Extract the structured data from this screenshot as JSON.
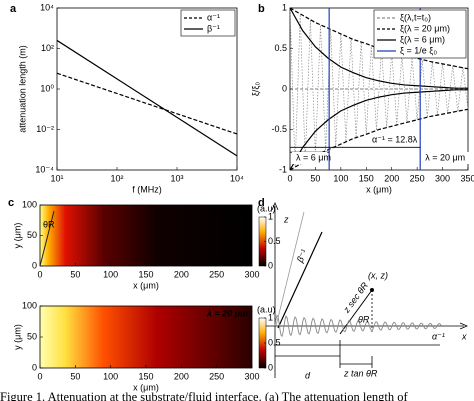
{
  "chart_data": [
    {
      "type": "line",
      "panel": "a",
      "xlabel": "f (MHz)",
      "ylabel": "attenuation length (m)",
      "log_x": true,
      "log_y": true,
      "x": [
        10,
        10000
      ],
      "xlim": [
        10,
        10000
      ],
      "ylim": [
        0.0001,
        10000
      ],
      "xticks": [
        {
          "value": 10,
          "label": "10¹"
        },
        {
          "value": 100,
          "label": "10²"
        },
        {
          "value": 1000,
          "label": "10³"
        },
        {
          "value": 10000,
          "label": "10⁴"
        }
      ],
      "yticks": [
        {
          "value": 0.0001,
          "label": "10⁻⁴"
        },
        {
          "value": 0.01,
          "label": "10⁻²"
        },
        {
          "value": 1,
          "label": "10⁰"
        },
        {
          "value": 100,
          "label": "10²"
        },
        {
          "value": 10000,
          "label": "10⁴"
        }
      ],
      "legend": "upper right",
      "series": [
        {
          "name": "α⁻¹",
          "color": "#000000",
          "dash": true,
          "values": [
            6,
            0.006
          ]
        },
        {
          "name": "β⁻¹",
          "color": "#000000",
          "dash": false,
          "values": [
            250,
            0.0005
          ]
        }
      ]
    },
    {
      "type": "line",
      "panel": "b",
      "xlabel": "x (μm)",
      "ylabel": "ξ/ξ₀",
      "x": [
        0,
        25,
        50,
        75,
        100,
        125,
        150,
        175,
        200,
        225,
        250,
        275,
        300,
        325,
        350
      ],
      "xlim": [
        0,
        350
      ],
      "ylim": [
        -1,
        1
      ],
      "xticks": [
        0,
        50,
        100,
        150,
        200,
        250,
        300,
        350
      ],
      "yticks": [
        -1,
        -0.5,
        0,
        0.5,
        1
      ],
      "legend": "upper right",
      "series": [
        {
          "name": "ξ(λ,t=t₀)",
          "color": "#8c8c8c",
          "dash": true,
          "x": [
            0,
            10,
            20,
            30,
            40,
            50,
            60,
            70,
            80,
            90,
            100,
            110,
            120,
            130,
            140,
            150,
            160,
            170,
            180,
            190,
            200,
            210,
            220,
            230,
            240,
            250,
            260,
            270,
            280,
            290,
            300,
            310,
            320,
            330,
            340,
            350
          ],
          "values": [
            1,
            -0.96,
            0.92,
            -0.89,
            0.86,
            -0.82,
            0.79,
            -0.76,
            0.73,
            -0.7,
            0.68,
            -0.65,
            0.63,
            -0.6,
            0.58,
            -0.56,
            0.54,
            -0.51,
            0.5,
            -0.48,
            0.46,
            -0.44,
            0.42,
            -0.41,
            0.39,
            -0.38,
            0.36,
            -0.35,
            0.34,
            -0.32,
            0.31,
            -0.3,
            0.29,
            -0.28,
            0.27,
            -0.25
          ]
        },
        {
          "name": "ξ(λ = 20 μm)",
          "color": "#000000",
          "dash": true,
          "values": [
            1,
            0.91,
            0.82,
            0.75,
            0.68,
            0.61,
            0.56,
            0.5,
            0.46,
            0.42,
            0.38,
            0.34,
            0.31,
            0.28,
            0.25
          ],
          "lower": [
            -1,
            -0.91,
            -0.82,
            -0.75,
            -0.68,
            -0.61,
            -0.56,
            -0.5,
            -0.46,
            -0.42,
            -0.38,
            -0.34,
            -0.31,
            -0.28,
            -0.25
          ]
        },
        {
          "name": "ξ(λ = 6 μm)",
          "color": "#000000",
          "dash": false,
          "values": [
            1,
            0.72,
            0.52,
            0.38,
            0.27,
            0.2,
            0.14,
            0.1,
            0.07,
            0.05,
            0.04,
            0.03,
            0.02,
            0.01,
            0.01
          ],
          "lower": [
            -1,
            -0.72,
            -0.52,
            -0.38,
            -0.27,
            -0.2,
            -0.14,
            -0.1,
            -0.07,
            -0.05,
            -0.04,
            -0.03,
            -0.02,
            -0.01,
            -0.01
          ]
        },
        {
          "name": "ξ = 1/e ξ₀",
          "color": "#1f3fbf",
          "dash": false,
          "xs": [
            77,
            256
          ]
        }
      ],
      "annotations": [
        "λ = 6 μm",
        "λ = 20 μm",
        "α⁻¹ = 12.8λ"
      ]
    },
    {
      "type": "heatmap",
      "panel": "c",
      "label": "λ = 6 μm",
      "unit": "(a.u)",
      "angle_label": "θR",
      "xlabel": "x (μm)",
      "ylabel": "y (μm)",
      "xlim": [
        0,
        300
      ],
      "ylim": [
        0,
        100
      ],
      "xticks": [
        0,
        50,
        100,
        150,
        200,
        250,
        300
      ],
      "yticks": [
        0,
        50,
        100
      ],
      "zlim": [
        0,
        1
      ],
      "zticks": [
        0,
        0.5,
        1
      ]
    },
    {
      "type": "heatmap",
      "label": "λ = 20 μm",
      "unit": "(a.u)",
      "xlabel": "x (μm)",
      "ylabel": "y (μm)",
      "xlim": [
        0,
        300
      ],
      "ylim": [
        0,
        100
      ],
      "xticks": [
        0,
        50,
        100,
        150,
        200,
        250,
        300
      ],
      "yticks": [
        0,
        50,
        100
      ],
      "zlim": [
        0,
        1
      ],
      "zticks": [
        0,
        0.5,
        1
      ]
    }
  ],
  "diagram": {
    "panel": "d",
    "z_axis": "z",
    "x_axis": "x",
    "beta": "β⁻¹",
    "point": "(x, z)",
    "sec": "z sec θR",
    "theta": "θR",
    "d": "d",
    "tan": "z tan θR",
    "alpha": "α⁻¹"
  },
  "caption": "Figure 1.  Attenuation at the substrate/fluid interface.  (a) The attenuation length of"
}
